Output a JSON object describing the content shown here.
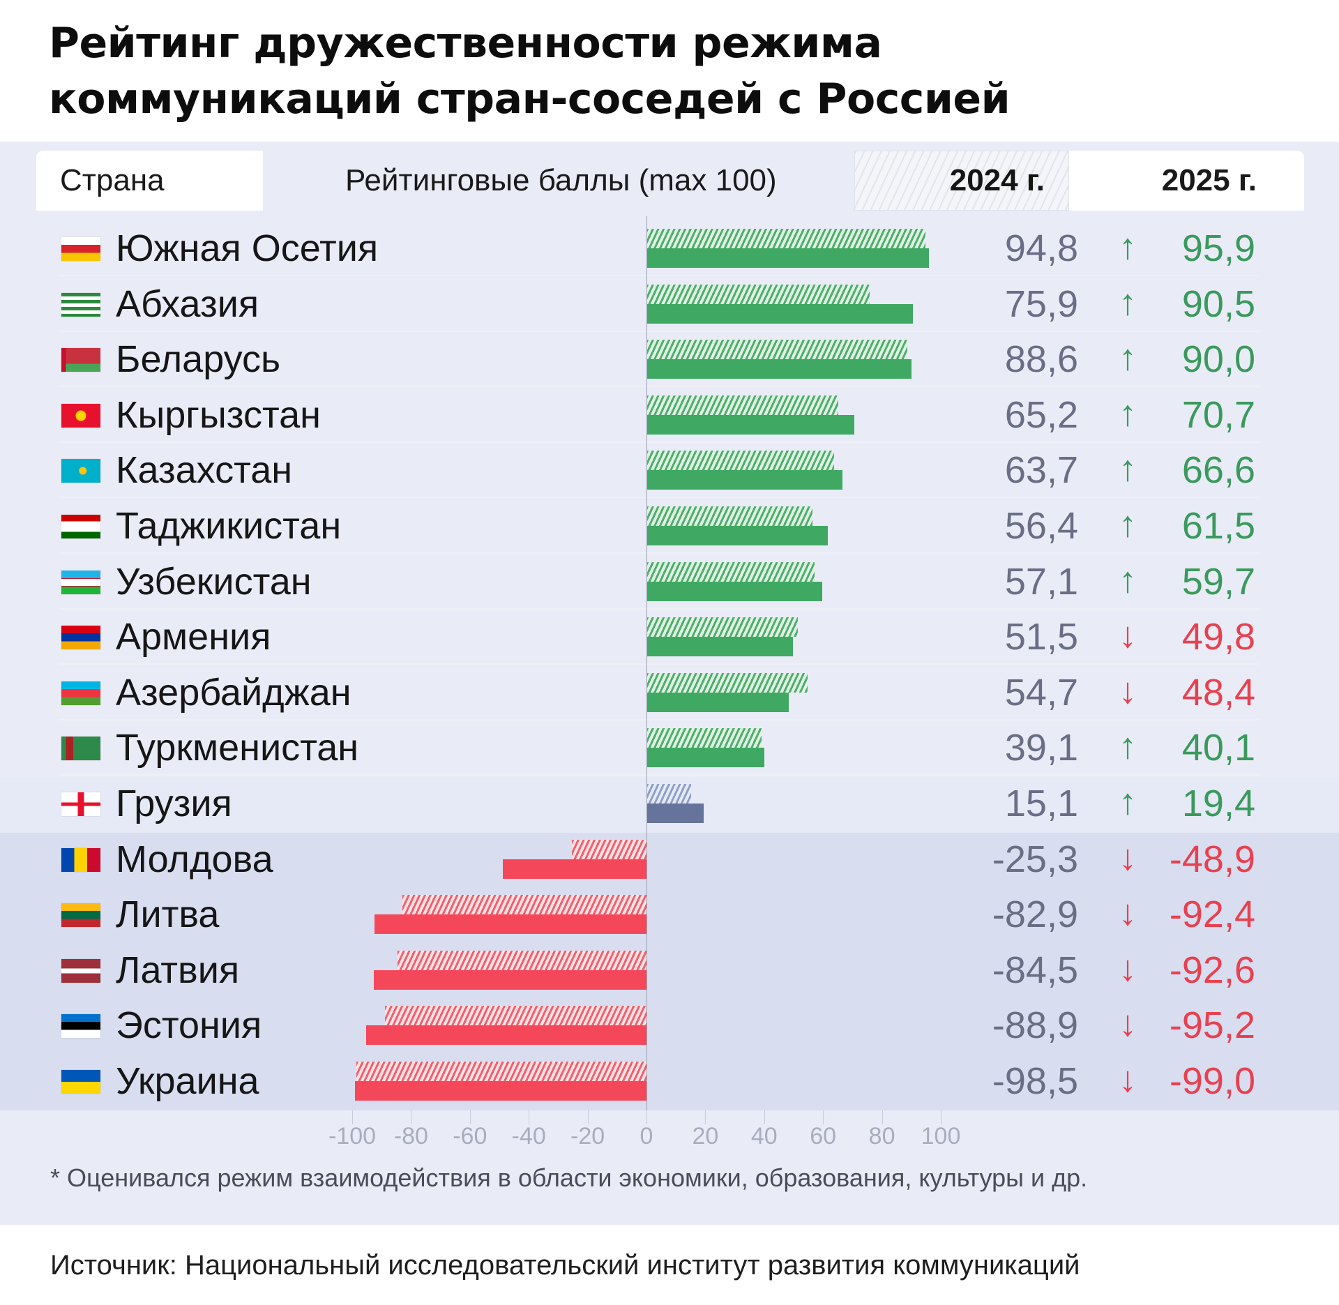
{
  "title": {
    "line1": "Рейтинг дружественности режима",
    "line2": "коммуникаций стран-соседей с Россией"
  },
  "header": {
    "country": "Страна",
    "score": "Рейтинговые баллы (max 100)",
    "y2024": "2024 г.",
    "y2025": "2025 г."
  },
  "colors": {
    "positive": "#3fa862",
    "positive_text": "#3a9a5c",
    "negative": "#f4485a",
    "negative_text": "#e8404f",
    "neutral": "#66739a",
    "value_2024_text": "#6a6e85"
  },
  "rows": [
    {
      "country": "Южная Осетия",
      "flag": "south-ossetia",
      "v2024": "94,8",
      "arrow": "↑",
      "v2025": "95,9"
    },
    {
      "country": "Абхазия",
      "flag": "abkhazia",
      "v2024": "75,9",
      "arrow": "↑",
      "v2025": "90,5"
    },
    {
      "country": "Беларусь",
      "flag": "belarus",
      "v2024": "88,6",
      "arrow": "↑",
      "v2025": "90,0"
    },
    {
      "country": "Кыргызстан",
      "flag": "kyrgyzstan",
      "v2024": "65,2",
      "arrow": "↑",
      "v2025": "70,7"
    },
    {
      "country": "Казахстан",
      "flag": "kazakhstan",
      "v2024": "63,7",
      "arrow": "↑",
      "v2025": "66,6"
    },
    {
      "country": "Таджикистан",
      "flag": "tajikistan",
      "v2024": "56,4",
      "arrow": "↑",
      "v2025": "61,5"
    },
    {
      "country": "Узбекистан",
      "flag": "uzbekistan",
      "v2024": "57,1",
      "arrow": "↑",
      "v2025": "59,7"
    },
    {
      "country": "Армения",
      "flag": "armenia",
      "v2024": "51,5",
      "arrow": "↓",
      "v2025": "49,8"
    },
    {
      "country": "Азербайджан",
      "flag": "azerbaijan",
      "v2024": "54,7",
      "arrow": "↓",
      "v2025": "48,4"
    },
    {
      "country": "Туркменистан",
      "flag": "turkmenistan",
      "v2024": "39,1",
      "arrow": "↑",
      "v2025": "40,1"
    },
    {
      "country": "Грузия",
      "flag": "georgia",
      "v2024": "15,1",
      "arrow": "↑",
      "v2025": "19,4"
    },
    {
      "country": "Молдова",
      "flag": "moldova",
      "v2024": "-25,3",
      "arrow": "↓",
      "v2025": "-48,9"
    },
    {
      "country": "Литва",
      "flag": "lithuania",
      "v2024": "-82,9",
      "arrow": "↓",
      "v2025": "-92,4"
    },
    {
      "country": "Латвия",
      "flag": "latvia",
      "v2024": "-84,5",
      "arrow": "↓",
      "v2025": "-92,6"
    },
    {
      "country": "Эстония",
      "flag": "estonia",
      "v2024": "-88,9",
      "arrow": "↓",
      "v2025": "-95,2"
    },
    {
      "country": "Украина",
      "flag": "ukraine",
      "v2024": "-98,5",
      "arrow": "↓",
      "v2025": "-99,0"
    }
  ],
  "axis": {
    "ticks": [
      "-100",
      "-80",
      "-60",
      "-40",
      "-20",
      "0",
      "20",
      "40",
      "60",
      "80",
      "100"
    ]
  },
  "footnote": "* Оценивался режим взаимодействия в области экономики, образования, культуры и др.",
  "source": "Источник: Национальный исследовательский институт развития коммуникаций",
  "chart_data": {
    "type": "bar",
    "orientation": "horizontal",
    "title": "Рейтинг дружественности режима коммуникаций стран-соседей с Россией",
    "xlabel": "Рейтинговые баллы (max 100)",
    "ylabel": "Страна",
    "xlim": [
      -100,
      100
    ],
    "x_ticks": [
      -100,
      -80,
      -60,
      -40,
      -20,
      0,
      20,
      40,
      60,
      80,
      100
    ],
    "grid": false,
    "legend": [
      "2024 г. (hatched)",
      "2025 г. (solid)"
    ],
    "legend_position": "top (header)",
    "categories": [
      "Южная Осетия",
      "Абхазия",
      "Беларусь",
      "Кыргызстан",
      "Казахстан",
      "Таджикистан",
      "Узбекистан",
      "Армения",
      "Азербайджан",
      "Туркменистан",
      "Грузия",
      "Молдова",
      "Литва",
      "Латвия",
      "Эстония",
      "Украина"
    ],
    "series": [
      {
        "name": "2024 г.",
        "style": "hatched",
        "values": [
          94.8,
          75.9,
          88.6,
          65.2,
          63.7,
          56.4,
          57.1,
          51.5,
          54.7,
          39.1,
          15.1,
          -25.3,
          -82.9,
          -84.5,
          -88.9,
          -98.5
        ]
      },
      {
        "name": "2025 г.",
        "style": "solid",
        "values": [
          95.9,
          90.5,
          90.0,
          70.7,
          66.6,
          61.5,
          59.7,
          49.8,
          48.4,
          40.1,
          19.4,
          -48.9,
          -92.4,
          -92.6,
          -95.2,
          -99.0
        ]
      }
    ],
    "change_direction": [
      "up",
      "up",
      "up",
      "up",
      "up",
      "up",
      "up",
      "down",
      "down",
      "up",
      "up",
      "down",
      "down",
      "down",
      "down",
      "down"
    ],
    "annotations": [
      "* Оценивался режим взаимодействия в области экономики, образования, культуры и др.",
      "Источник: Национальный исследовательский институт развития коммуникаций"
    ]
  }
}
